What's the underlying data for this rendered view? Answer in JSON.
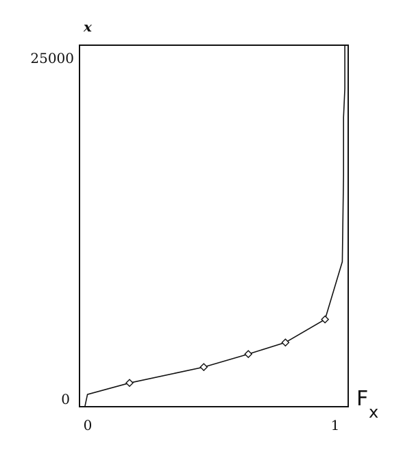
{
  "chart_data": {
    "type": "line",
    "title": "",
    "ylabel": "x",
    "xlabel": {
      "main": "F",
      "sub": "x"
    },
    "xlim": [
      0,
      1
    ],
    "ylim": [
      0,
      25000
    ],
    "x_ticks": [
      {
        "value": 0,
        "label": "0"
      },
      {
        "value": 1,
        "label": "1"
      }
    ],
    "y_ticks": [
      {
        "value": 0,
        "label": "0"
      },
      {
        "value": 25000,
        "label": "25000"
      }
    ],
    "grid": false,
    "series": [
      {
        "line": [
          [
            0.0,
            0
          ],
          [
            0.01,
            800
          ],
          [
            0.18,
            1600
          ],
          [
            0.48,
            2700
          ],
          [
            0.66,
            3600
          ],
          [
            0.81,
            4400
          ],
          [
            0.97,
            6000
          ],
          [
            1.04,
            10000
          ],
          [
            1.045,
            16000
          ],
          [
            1.045,
            20000
          ],
          [
            1.05,
            22000
          ],
          [
            1.05,
            25000
          ]
        ],
        "markers": [
          [
            0.18,
            1600
          ],
          [
            0.48,
            2700
          ],
          [
            0.66,
            3600
          ],
          [
            0.81,
            4400
          ],
          [
            0.97,
            6000
          ]
        ]
      }
    ]
  }
}
